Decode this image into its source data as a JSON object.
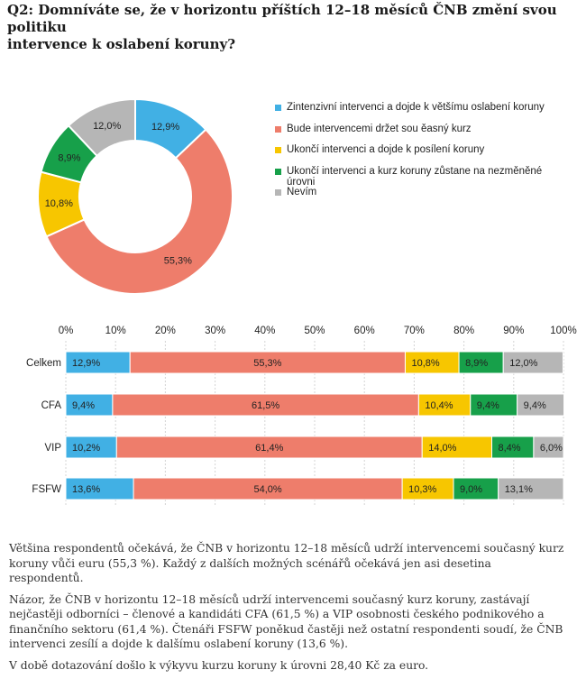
{
  "question": {
    "line1": "Q2: Domníváte se, že v horizontu příštích 12–18 měsíců ČNB změní svou politiku",
    "line2": "intervence k oslabení koruny?"
  },
  "colors": {
    "blue": "#41b0e4",
    "red": "#ee7d6b",
    "yellow": "#f7c600",
    "green": "#17a04a",
    "gray": "#b6b6b6"
  },
  "chart_data": [
    {
      "type": "pie",
      "variant": "donut",
      "title": "",
      "categories": [
        "Zintenzivní intervenci a dojde k většímu oslabení koruny",
        "Bude intervencemi držet sou ěasný kurz",
        "Ukončí intervenci a dojde k posílení koruny",
        "Ukončí intervenci a kurz koruny zůstane na nezměněné úrovni",
        "Nevím"
      ],
      "values": [
        12.9,
        55.3,
        10.8,
        8.9,
        12.0
      ],
      "labels": [
        "12,9%",
        "55,3%",
        "10,8%",
        "8,9%",
        "12,0%"
      ],
      "legend_position": "right"
    },
    {
      "type": "bar",
      "orientation": "horizontal",
      "stacked": true,
      "xlim": [
        0,
        100
      ],
      "ticks": [
        "0%",
        "10%",
        "20%",
        "30%",
        "40%",
        "50%",
        "60%",
        "70%",
        "80%",
        "90%",
        "100%"
      ],
      "categories": [
        "Celkem",
        "CFA",
        "VIP",
        "FSFW"
      ],
      "series": [
        {
          "name": "Zintenzivní intervenci a dojde k většímu oslabení koruny",
          "values": [
            12.9,
            9.4,
            10.2,
            13.6
          ],
          "labels": [
            "12,9%",
            "9,4%",
            "10,2%",
            "13,6%"
          ]
        },
        {
          "name": "Bude intervencemi držet sou ěasný kurz",
          "values": [
            55.3,
            61.5,
            61.4,
            54.0
          ],
          "labels": [
            "55,3%",
            "61,5%",
            "61,4%",
            "54,0%"
          ]
        },
        {
          "name": "Ukončí intervenci a dojde k posílení koruny",
          "values": [
            10.8,
            10.4,
            14.0,
            10.3
          ],
          "labels": [
            "10,8%",
            "10,4%",
            "14,0%",
            "10,3%"
          ]
        },
        {
          "name": "Ukončí intervenci a kurz koruny zůstane na nezměněné úrovni",
          "values": [
            8.9,
            9.4,
            8.4,
            9.0
          ],
          "labels": [
            "8,9%",
            "9,4%",
            "8,4%",
            "9,0%"
          ]
        },
        {
          "name": "Nevím",
          "values": [
            12.0,
            9.4,
            6.0,
            13.1
          ],
          "labels": [
            "12,0%",
            "9,4%",
            "6,0%",
            "13,1%"
          ]
        }
      ]
    }
  ],
  "paragraphs": [
    "Většina respondentů očekává, že ČNB v horizontu 12–18 měsíců udrží intervencemi současný kurz koruny vůči euru (55,3 %). Každý z dalších možných scénářů očekává jen asi desetina respondentů.",
    "Názor, že ČNB v horizontu 12–18 měsíců udrží intervencemi současný kurz koruny, zastávají nejčastěji odborníci – členové a kandidáti CFA (61,5 %) a VIP osobnosti českého podnikového a finančního sektoru (61,4 %). Čtenáři FSFW poněkud častěji než ostatní respondenti soudí, že ČNB intervenci zesílí a dojde k dalšímu oslabení koruny (13,6 %).",
    "V době dotazování došlo k výkyvu kurzu koruny k úrovni 28,40 Kč za euro."
  ]
}
